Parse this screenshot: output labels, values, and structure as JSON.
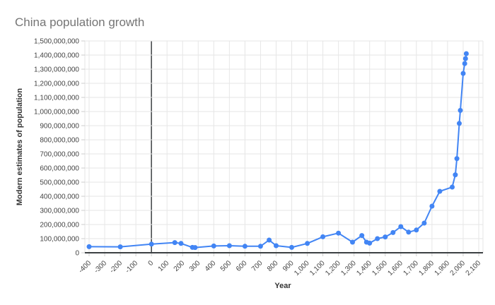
{
  "page": {
    "background": "#ffffff"
  },
  "chart": {
    "title": "China population growth",
    "title_color": "#757575",
    "series_color": "#4285f4",
    "gridline_color": "#e6e6e6",
    "tick_mark_color": "#cccccc",
    "axis_line_color": "#3c4043",
    "zero_line_color": "#3c4043",
    "tick_label_color": "#444444"
  },
  "chart_data": {
    "type": "line",
    "title": "China population growth",
    "xlabel": "Year",
    "ylabel": "Modern estimates of population",
    "xlim": [
      -400,
      2100
    ],
    "ylim": [
      0,
      1500000000
    ],
    "grid": true,
    "legend": "none",
    "marker": "circle",
    "x_ticks": [
      -400,
      -300,
      -200,
      -100,
      0,
      100,
      200,
      300,
      400,
      500,
      600,
      700,
      800,
      900,
      1000,
      1100,
      1200,
      1300,
      1400,
      1500,
      1600,
      1700,
      1800,
      1900,
      2000,
      2100
    ],
    "y_ticks": [
      0,
      100000000,
      200000000,
      300000000,
      400000000,
      500000000,
      600000000,
      700000000,
      800000000,
      900000000,
      1000000000,
      1100000000,
      1200000000,
      1300000000,
      1400000000,
      1500000000
    ],
    "series": [
      {
        "name": "Modern estimates of population",
        "points": [
          {
            "year": -400,
            "population": 43000000
          },
          {
            "year": -200,
            "population": 42000000
          },
          {
            "year": 0,
            "population": 61000000
          },
          {
            "year": 150,
            "population": 72000000
          },
          {
            "year": 190,
            "population": 66000000
          },
          {
            "year": 263,
            "population": 38000000
          },
          {
            "year": 280,
            "population": 37000000
          },
          {
            "year": 400,
            "population": 48000000
          },
          {
            "year": 500,
            "population": 50000000
          },
          {
            "year": 600,
            "population": 46000000
          },
          {
            "year": 700,
            "population": 46000000
          },
          {
            "year": 755,
            "population": 90000000
          },
          {
            "year": 800,
            "population": 50000000
          },
          {
            "year": 900,
            "population": 38000000
          },
          {
            "year": 1000,
            "population": 66000000
          },
          {
            "year": 1100,
            "population": 113000000
          },
          {
            "year": 1200,
            "population": 139000000
          },
          {
            "year": 1290,
            "population": 75000000
          },
          {
            "year": 1350,
            "population": 122000000
          },
          {
            "year": 1380,
            "population": 75000000
          },
          {
            "year": 1400,
            "population": 68000000
          },
          {
            "year": 1450,
            "population": 100000000
          },
          {
            "year": 1500,
            "population": 112000000
          },
          {
            "year": 1550,
            "population": 143000000
          },
          {
            "year": 1600,
            "population": 185000000
          },
          {
            "year": 1650,
            "population": 146000000
          },
          {
            "year": 1700,
            "population": 161000000
          },
          {
            "year": 1750,
            "population": 210000000
          },
          {
            "year": 1800,
            "population": 330000000
          },
          {
            "year": 1850,
            "population": 435000000
          },
          {
            "year": 1930,
            "population": 465000000
          },
          {
            "year": 1950,
            "population": 552000000
          },
          {
            "year": 1960,
            "population": 667000000
          },
          {
            "year": 1975,
            "population": 916000000
          },
          {
            "year": 1982,
            "population": 1008000000
          },
          {
            "year": 2000,
            "population": 1270000000
          },
          {
            "year": 2010,
            "population": 1340000000
          },
          {
            "year": 2015,
            "population": 1375000000
          },
          {
            "year": 2020,
            "population": 1410000000
          }
        ]
      }
    ]
  }
}
